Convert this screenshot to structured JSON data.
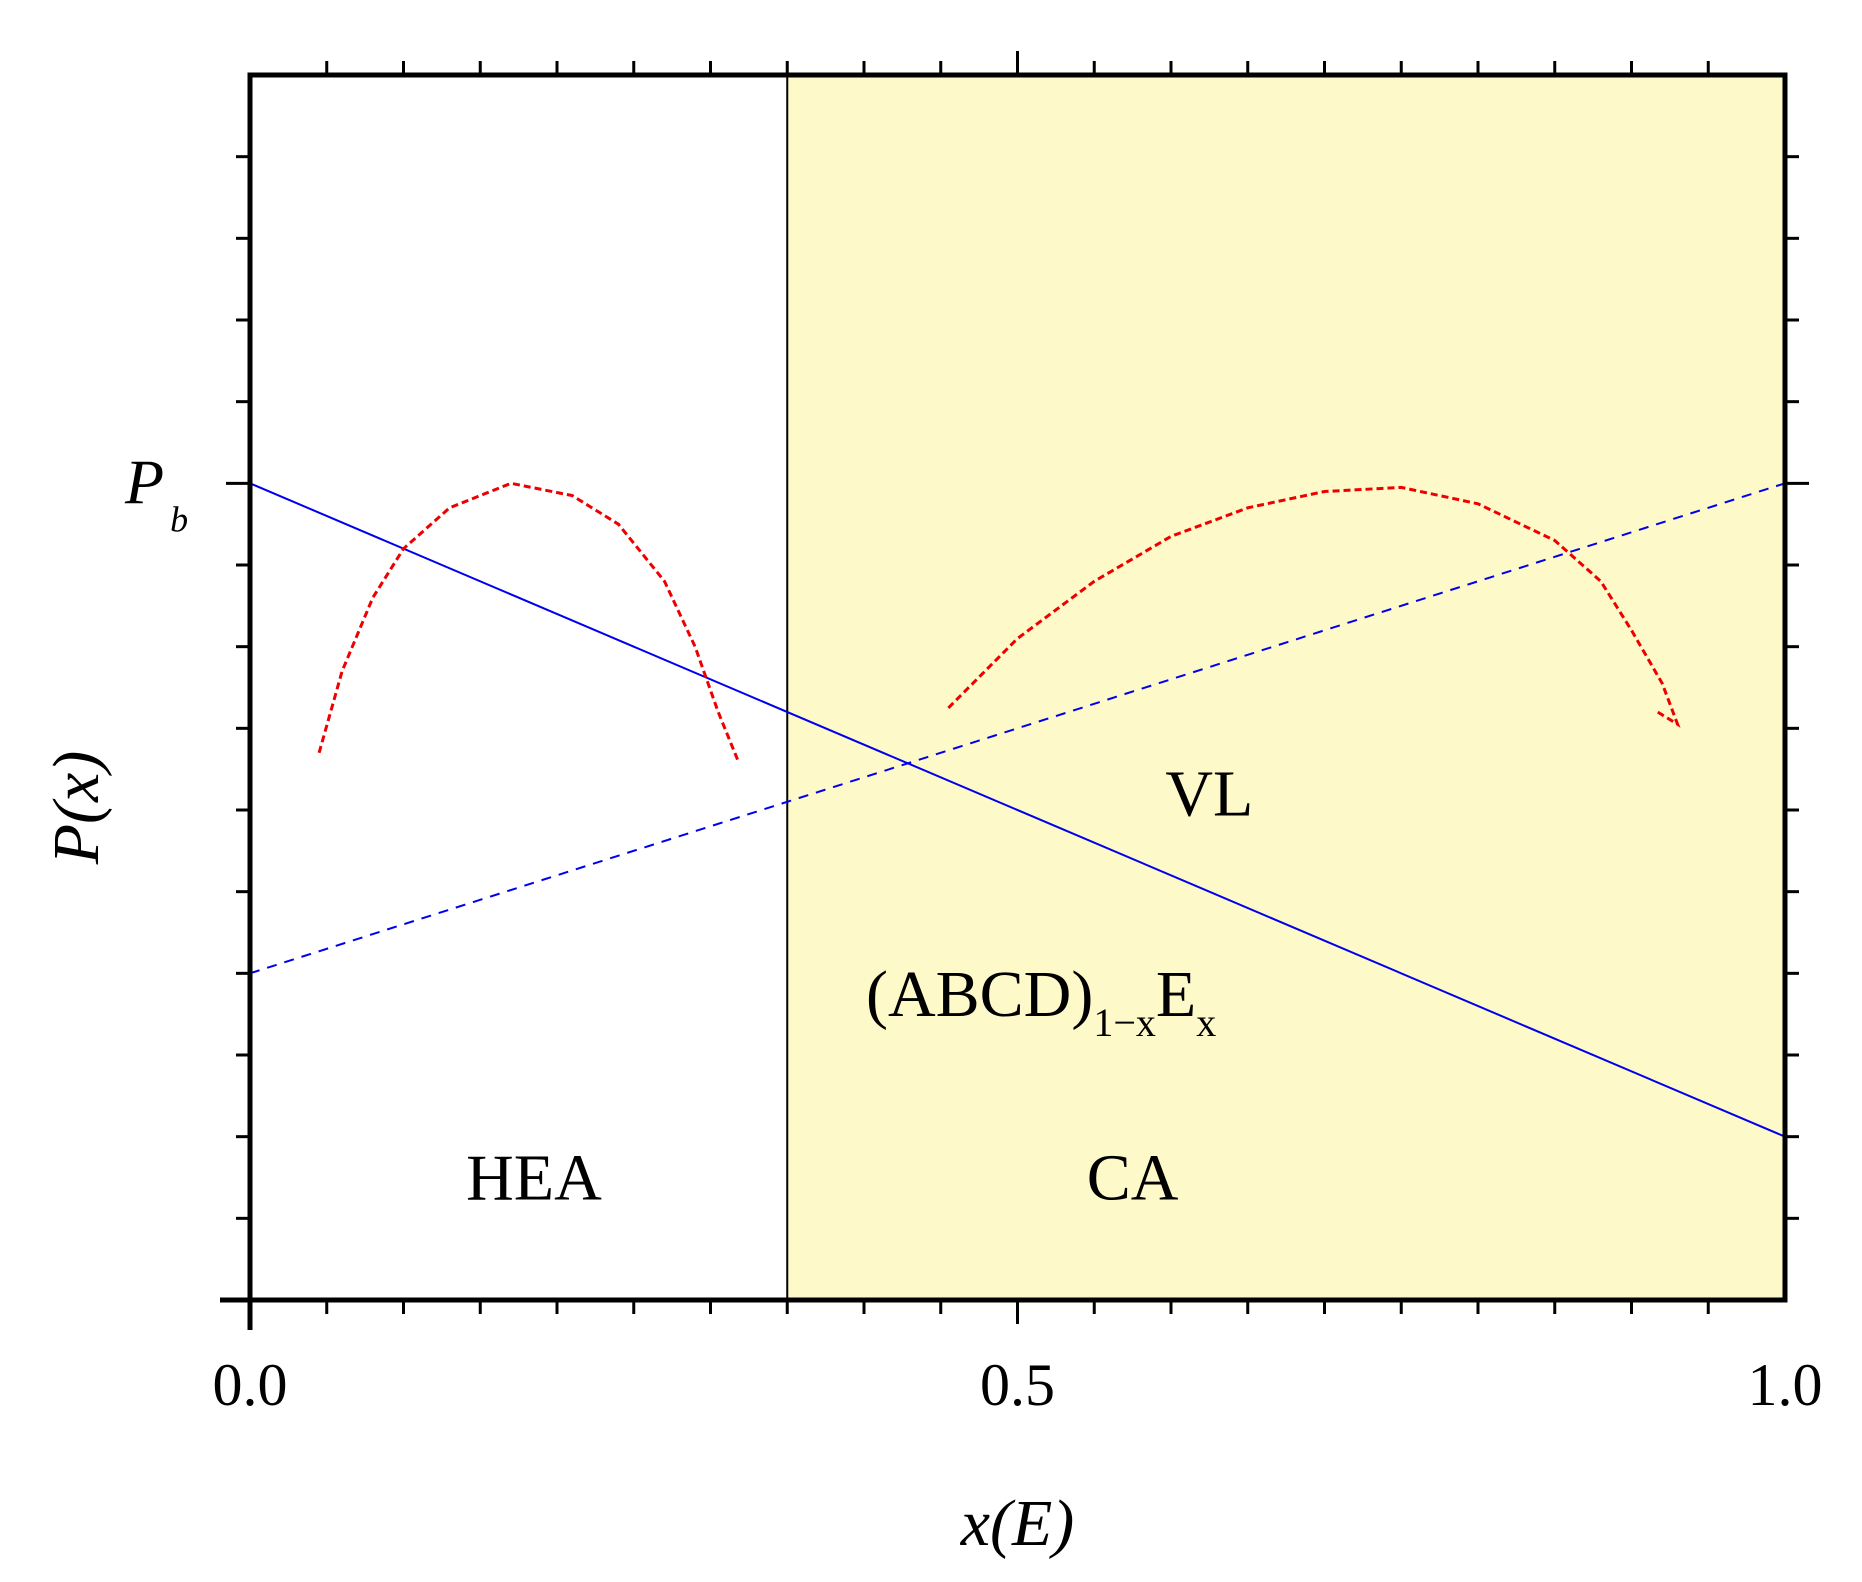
{
  "chart_data": {
    "type": "line",
    "title": "",
    "xlabel": "x(E)",
    "ylabel": "P(x)",
    "xlim": [
      0,
      1
    ],
    "ylim": [
      0,
      1.5
    ],
    "x_ticks": [
      {
        "value": 0.0,
        "label": "0.0"
      },
      {
        "value": 0.5,
        "label": "0.5"
      },
      {
        "value": 1.0,
        "label": "1.0"
      }
    ],
    "y_tick_label": {
      "value": 1.0,
      "main": "P",
      "sub": "b"
    },
    "boundary_x": 0.35,
    "shaded_region": {
      "x_from": 0.35,
      "x_to": 1.0,
      "color": "#fef9c8"
    },
    "series": [
      {
        "name": "solid-line",
        "style": "solid",
        "color": "#0000ee",
        "points": [
          [
            0.0,
            1.0
          ],
          [
            1.0,
            0.2
          ]
        ]
      },
      {
        "name": "dashed-line",
        "style": "dashed",
        "color": "#0000ee",
        "points": [
          [
            0.0,
            0.4
          ],
          [
            1.0,
            1.0
          ]
        ]
      },
      {
        "name": "left-arc",
        "style": "dashed",
        "color": "#ee0000",
        "points": [
          [
            0.045,
            0.67
          ],
          [
            0.06,
            0.77
          ],
          [
            0.08,
            0.86
          ],
          [
            0.1,
            0.92
          ],
          [
            0.13,
            0.97
          ],
          [
            0.17,
            1.0
          ],
          [
            0.21,
            0.985
          ],
          [
            0.24,
            0.95
          ],
          [
            0.27,
            0.88
          ],
          [
            0.29,
            0.8
          ],
          [
            0.305,
            0.72
          ],
          [
            0.318,
            0.66
          ]
        ]
      },
      {
        "name": "right-arc",
        "style": "dashed",
        "color": "#ee0000",
        "points": [
          [
            0.455,
            0.725
          ],
          [
            0.5,
            0.81
          ],
          [
            0.55,
            0.88
          ],
          [
            0.6,
            0.935
          ],
          [
            0.65,
            0.97
          ],
          [
            0.7,
            0.99
          ],
          [
            0.75,
            0.995
          ],
          [
            0.8,
            0.975
          ],
          [
            0.85,
            0.93
          ],
          [
            0.88,
            0.88
          ],
          [
            0.9,
            0.82
          ],
          [
            0.92,
            0.755
          ],
          [
            0.93,
            0.705
          ],
          [
            0.917,
            0.72
          ]
        ]
      }
    ],
    "annotations": [
      {
        "text": "VL",
        "x": 0.625,
        "y": 0.62
      },
      {
        "text": "HEA",
        "x": 0.185,
        "y": 0.15
      },
      {
        "text": "CA",
        "x": 0.575,
        "y": 0.15
      }
    ],
    "formula": {
      "open": "(ABCD)",
      "sub1": "1−x",
      "main": "E",
      "sub2": "x",
      "x": 0.4,
      "y": 0.37
    }
  }
}
